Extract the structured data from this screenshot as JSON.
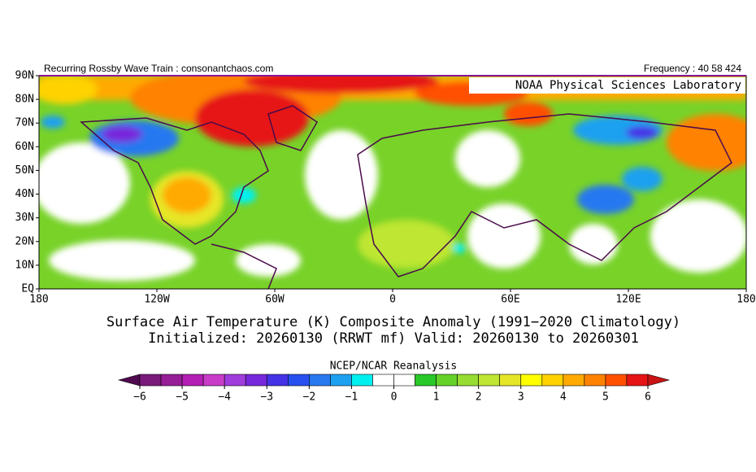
{
  "header": {
    "left": "Recurring Rossby Wave Train : consonantchaos.com",
    "right": "Frequency : 40 58 424"
  },
  "map": {
    "label": "NOAA Physical Sciences Laboratory",
    "lat_labels": [
      "90N",
      "80N",
      "70N",
      "60N",
      "50N",
      "40N",
      "30N",
      "20N",
      "10N",
      "EQ"
    ],
    "lon_labels": [
      "180",
      "120W",
      "60W",
      "0",
      "60E",
      "120E",
      "180"
    ]
  },
  "title": {
    "line1": "Surface Air Temperature (K) Composite Anomaly (1991−2020 Climatology)",
    "line2": "Initialized: 20260130 (RRWT mf) Valid: 20260130 to 20260301"
  },
  "colorbar": {
    "title": "NCEP/NCAR Reanalysis",
    "ticks": [
      {
        "value": -6,
        "label": "−6"
      },
      {
        "value": -5,
        "label": "−5"
      },
      {
        "value": -4,
        "label": "−4"
      },
      {
        "value": -3,
        "label": "−3"
      },
      {
        "value": -2,
        "label": "−2"
      },
      {
        "value": -1,
        "label": "−1"
      },
      0,
      1,
      2,
      3,
      4,
      5,
      6
    ],
    "lim": [
      -6,
      6
    ],
    "colors": [
      "#7a1a7a",
      "#961e96",
      "#b41eb4",
      "#c83cc8",
      "#a03cdc",
      "#7828dc",
      "#4632e6",
      "#2850f0",
      "#2878f0",
      "#1ea0f0",
      "#00f0f0",
      "#ffffff",
      "#ffffff",
      "#28c828",
      "#64d228",
      "#96dc32",
      "#bee632",
      "#e6e628",
      "#ffff00",
      "#ffd200",
      "#ffaa00",
      "#ff8200",
      "#ff5000",
      "#e61414"
    ],
    "under_color": "#500a50",
    "over_color": "#c81414"
  }
}
